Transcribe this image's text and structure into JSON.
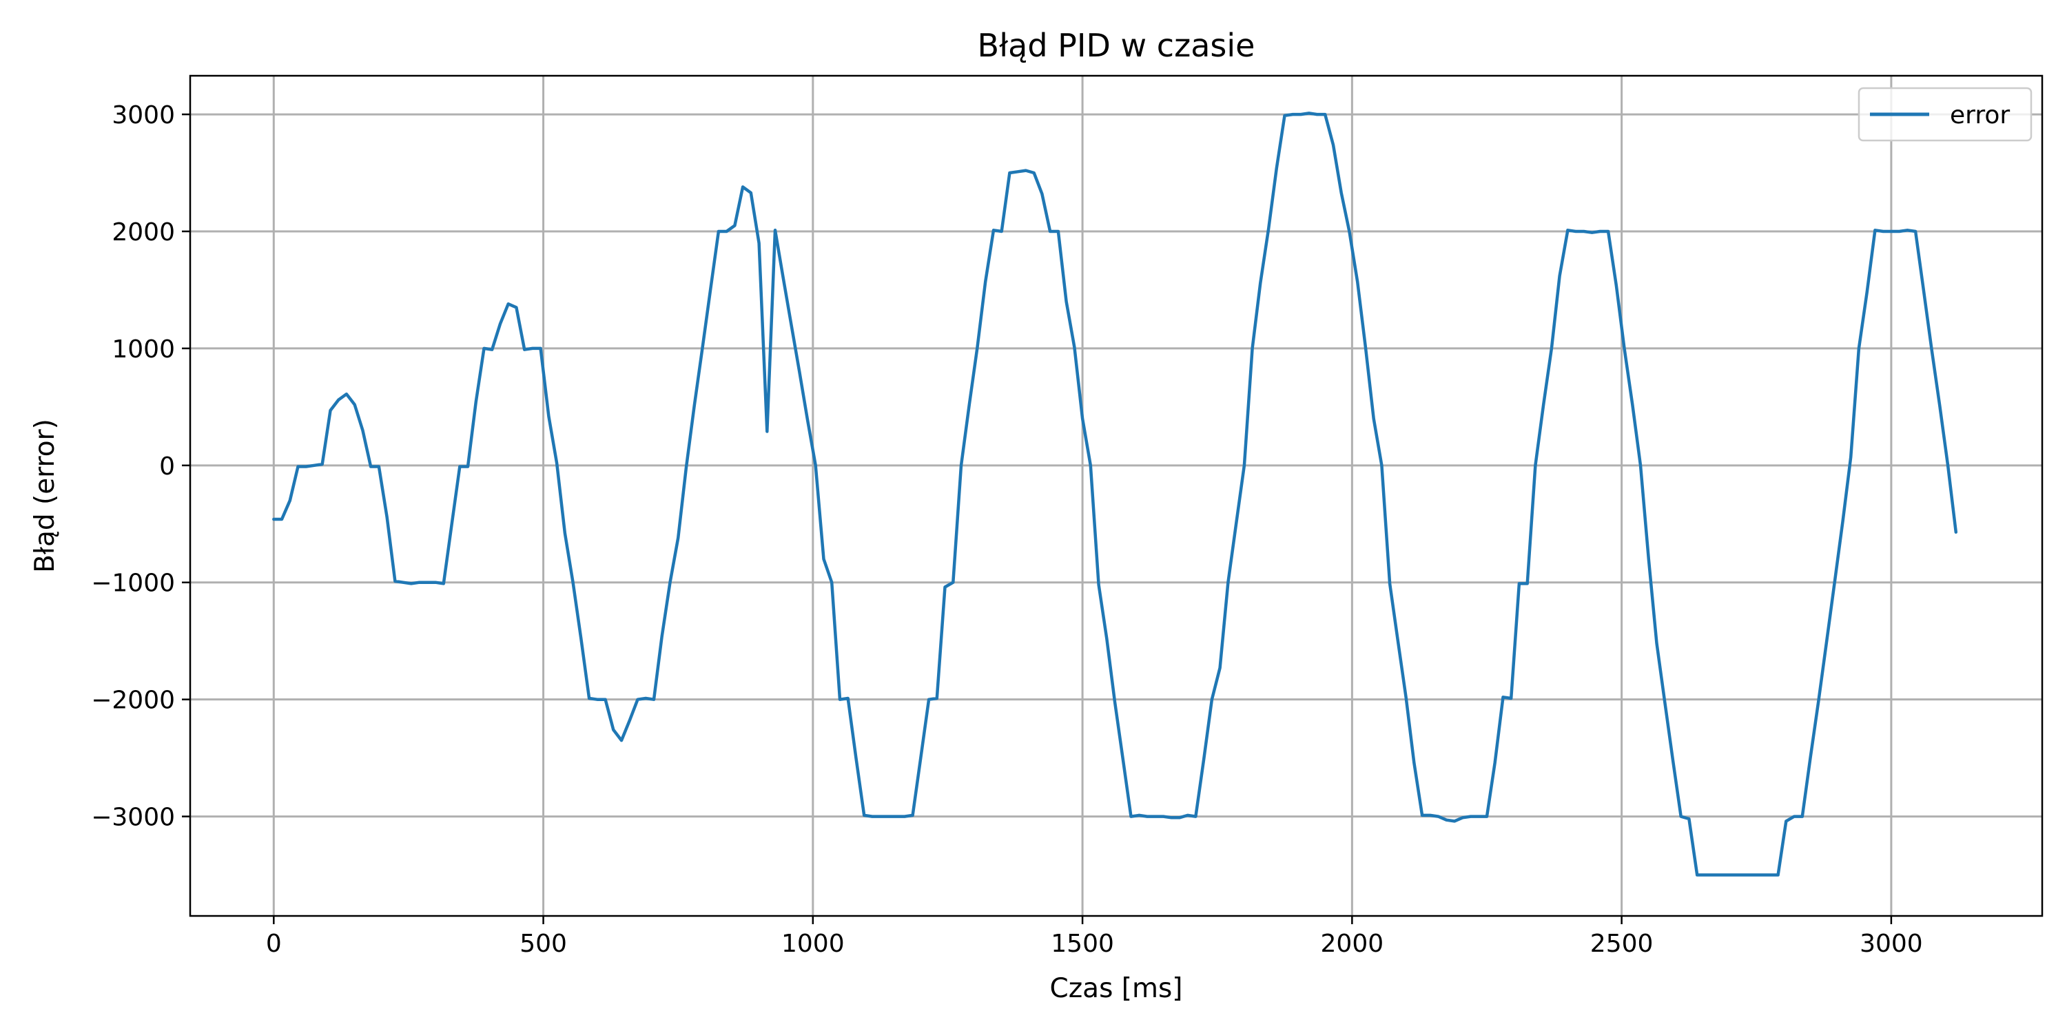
{
  "chart_data": {
    "type": "line",
    "title": "Błąd PID w czasie",
    "xlabel": "Czas [ms]",
    "ylabel": "Błąd (error)",
    "xlim": [
      -155,
      3280
    ],
    "ylim": [
      -3850,
      3330
    ],
    "xticks": [
      0,
      500,
      1000,
      1500,
      2000,
      2500,
      3000
    ],
    "yticks": [
      -3000,
      -2000,
      -1000,
      0,
      1000,
      2000,
      3000
    ],
    "grid": true,
    "legend": "top-right",
    "color": "#1f77b4",
    "series": [
      {
        "name": "error",
        "x": [
          0,
          15,
          30,
          45,
          60,
          75,
          90,
          105,
          120,
          135,
          150,
          165,
          180,
          195,
          210,
          225,
          240,
          255,
          270,
          285,
          300,
          315,
          330,
          345,
          360,
          375,
          390,
          405,
          420,
          435,
          450,
          465,
          480,
          495,
          510,
          525,
          540,
          555,
          570,
          585,
          600,
          615,
          630,
          645,
          660,
          675,
          690,
          705,
          720,
          735,
          750,
          765,
          780,
          795,
          810,
          825,
          840,
          855,
          870,
          885,
          900,
          915,
          930,
          945,
          960,
          975,
          990,
          1005,
          1020,
          1035,
          1050,
          1065,
          1080,
          1095,
          1110,
          1125,
          1140,
          1155,
          1170,
          1185,
          1200,
          1215,
          1230,
          1245,
          1260,
          1275,
          1290,
          1305,
          1320,
          1335,
          1350,
          1365,
          1380,
          1395,
          1410,
          1425,
          1440,
          1455,
          1470,
          1485,
          1500,
          1515,
          1530,
          1545,
          1560,
          1575,
          1590,
          1605,
          1620,
          1635,
          1650,
          1665,
          1680,
          1695,
          1710,
          1725,
          1740,
          1755,
          1770,
          1785,
          1800,
          1815,
          1830,
          1845,
          1860,
          1875,
          1890,
          1905,
          1920,
          1935,
          1950,
          1965,
          1980,
          1995,
          2010,
          2025,
          2040,
          2055,
          2070,
          2085,
          2100,
          2115,
          2130,
          2145,
          2160,
          2175,
          2190,
          2205,
          2220,
          2235,
          2250,
          2265,
          2280,
          2295,
          2310,
          2325,
          2340,
          2355,
          2370,
          2385,
          2400,
          2415,
          2430,
          2445,
          2460,
          2475,
          2490,
          2505,
          2520,
          2535,
          2550,
          2565,
          2580,
          2595,
          2610,
          2625,
          2640,
          2655,
          2670,
          2685,
          2700,
          2715,
          2730,
          2745,
          2760,
          2775,
          2790,
          2805,
          2820,
          2835,
          2850,
          2865,
          2880,
          2895,
          2910,
          2925,
          2940,
          2955,
          2970,
          2985,
          3000,
          3015,
          3030,
          3045,
          3060,
          3075,
          3090,
          3105,
          3120
        ],
        "values": [
          -460,
          -460,
          -300,
          -10,
          -10,
          0,
          10,
          470,
          560,
          610,
          520,
          300,
          -10,
          -10,
          -440,
          -990,
          -1000,
          -1010,
          -1000,
          -1000,
          -1000,
          -1010,
          -510,
          -10,
          -10,
          540,
          1000,
          990,
          1210,
          1380,
          1350,
          990,
          1000,
          1000,
          420,
          20,
          -580,
          -1000,
          -1480,
          -1990,
          -2000,
          -2000,
          -2260,
          -2350,
          -2180,
          -2000,
          -1990,
          -2000,
          -1460,
          -1000,
          -620,
          -20,
          510,
          1000,
          1500,
          2000,
          2000,
          2050,
          2380,
          2330,
          1900,
          290,
          2010,
          1600,
          1200,
          800,
          390,
          0,
          -800,
          -1000,
          -2000,
          -1990,
          -2500,
          -2990,
          -3000,
          -3000,
          -3000,
          -3000,
          -3000,
          -2990,
          -2500,
          -2000,
          -1990,
          -1040,
          -1000,
          0,
          520,
          1010,
          1570,
          2010,
          2000,
          2500,
          2510,
          2520,
          2500,
          2320,
          2000,
          2000,
          1400,
          1010,
          400,
          0,
          -1020,
          -1480,
          -2020,
          -2510,
          -3000,
          -2990,
          -3000,
          -3000,
          -3000,
          -3010,
          -3010,
          -2990,
          -3000,
          -2510,
          -2000,
          -1730,
          -1000,
          -500,
          0,
          1000,
          1560,
          2020,
          2540,
          2990,
          3000,
          3000,
          3010,
          3000,
          3000,
          2740,
          2330,
          2000,
          1570,
          1010,
          400,
          0,
          -1010,
          -1500,
          -1980,
          -2540,
          -2990,
          -2990,
          -3000,
          -3030,
          -3040,
          -3010,
          -3000,
          -3000,
          -3000,
          -2540,
          -1980,
          -1990,
          -1010,
          -1010,
          0,
          520,
          1000,
          1620,
          2010,
          2000,
          2000,
          1990,
          2000,
          2000,
          1540,
          1000,
          520,
          0,
          -800,
          -1520,
          -2020,
          -2520,
          -3000,
          -3020,
          -3500,
          -3500,
          -3500,
          -3500,
          -3500,
          -3500,
          -3500,
          -3500,
          -3500,
          -3500,
          -3500,
          -3040,
          -3000,
          -3000,
          -2500,
          -2020,
          -1510,
          -1000,
          -480,
          70,
          1000,
          1480,
          2010,
          2000,
          2000,
          2000,
          2010,
          2000,
          1500,
          990,
          510,
          0,
          -570
        ]
      }
    ]
  }
}
